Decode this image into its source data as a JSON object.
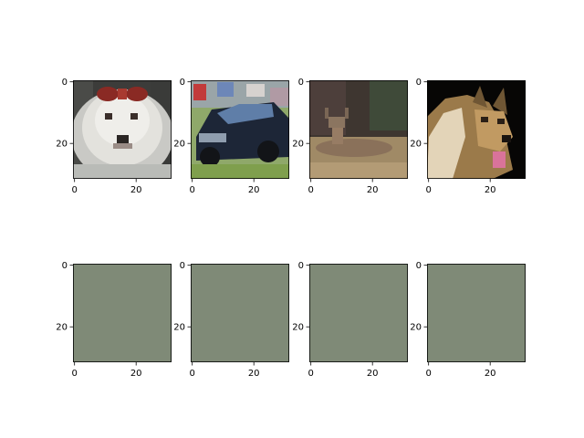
{
  "chart_data": [
    {
      "type": "image",
      "row": 0,
      "col": 0,
      "content": "pixelated-white-dog",
      "xlim": [
        -0.5,
        31.5
      ],
      "ylim": [
        31.5,
        -0.5
      ],
      "xticks": [
        0,
        20
      ],
      "yticks": [
        0,
        20
      ]
    },
    {
      "type": "image",
      "row": 0,
      "col": 1,
      "content": "pixelated-dark-car",
      "xlim": [
        -0.5,
        31.5
      ],
      "ylim": [
        31.5,
        -0.5
      ],
      "xticks": [
        0,
        20
      ],
      "yticks": [
        0,
        20
      ]
    },
    {
      "type": "image",
      "row": 0,
      "col": 2,
      "content": "pixelated-deer",
      "xlim": [
        -0.5,
        31.5
      ],
      "ylim": [
        31.5,
        -0.5
      ],
      "xticks": [
        0,
        20
      ],
      "yticks": [
        0,
        20
      ]
    },
    {
      "type": "image",
      "row": 0,
      "col": 3,
      "content": "pixelated-german-shepherd",
      "xlim": [
        -0.5,
        31.5
      ],
      "ylim": [
        31.5,
        -0.5
      ],
      "xticks": [
        0,
        20
      ],
      "yticks": [
        0,
        20
      ]
    },
    {
      "type": "image",
      "row": 1,
      "col": 0,
      "content": "flat-fill",
      "fill": "#7f8a77",
      "xlim": [
        -0.5,
        31.5
      ],
      "ylim": [
        31.5,
        -0.5
      ],
      "xticks": [
        0,
        20
      ],
      "yticks": [
        0,
        20
      ]
    },
    {
      "type": "image",
      "row": 1,
      "col": 1,
      "content": "flat-fill",
      "fill": "#7f8a77",
      "xlim": [
        -0.5,
        31.5
      ],
      "ylim": [
        31.5,
        -0.5
      ],
      "xticks": [
        0,
        20
      ],
      "yticks": [
        0,
        20
      ]
    },
    {
      "type": "image",
      "row": 1,
      "col": 2,
      "content": "flat-fill",
      "fill": "#7f8a77",
      "xlim": [
        -0.5,
        31.5
      ],
      "ylim": [
        31.5,
        -0.5
      ],
      "xticks": [
        0,
        20
      ],
      "yticks": [
        0,
        20
      ]
    },
    {
      "type": "image",
      "row": 1,
      "col": 3,
      "content": "flat-fill",
      "fill": "#7f8a77",
      "xlim": [
        -0.5,
        31.5
      ],
      "ylim": [
        31.5,
        -0.5
      ],
      "xticks": [
        0,
        20
      ],
      "yticks": [
        0,
        20
      ]
    }
  ],
  "colors": {
    "flat_fill": "#7f8a77"
  }
}
